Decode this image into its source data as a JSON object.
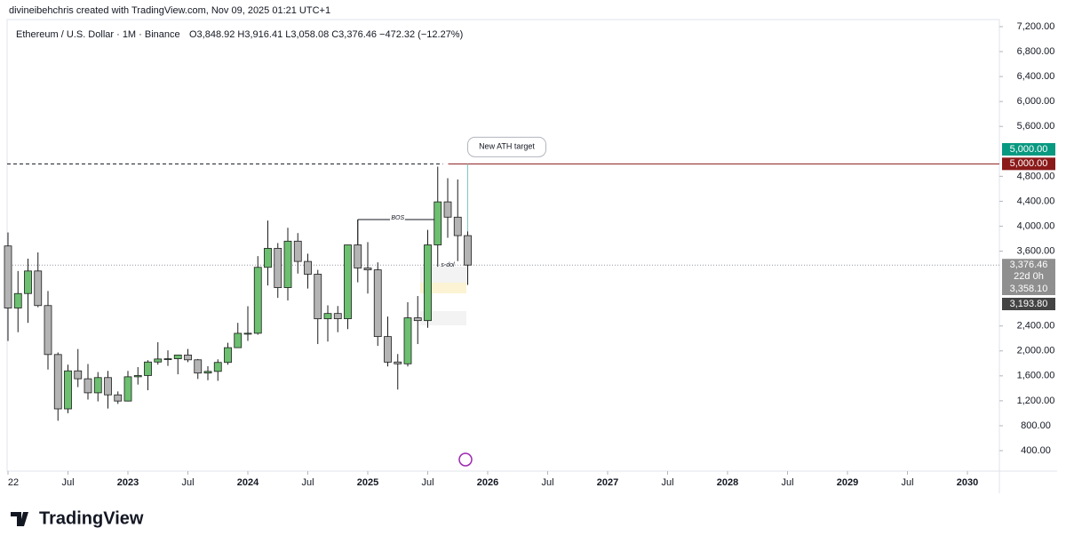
{
  "header": {
    "credit": "divineibehchris created with TradingView.com, Nov 09, 2025 01:21 UTC+1",
    "symbol": "Ethereum / U.S. Dollar · 1M · Binance",
    "ohlc_legend": "O3,848.92  H3,916.41  L3,058.08  C3,376.46  −472.32 (−12.27%)"
  },
  "footer": {
    "brand": "TradingView"
  },
  "chart_data": {
    "type": "candlestick",
    "x": [
      "2022-01",
      "2022-02",
      "2022-03",
      "2022-04",
      "2022-05",
      "2022-06",
      "2022-07",
      "2022-08",
      "2022-09",
      "2022-10",
      "2022-11",
      "2022-12",
      "2023-01",
      "2023-02",
      "2023-03",
      "2023-04",
      "2023-05",
      "2023-06",
      "2023-07",
      "2023-08",
      "2023-09",
      "2023-10",
      "2023-11",
      "2023-12",
      "2024-01",
      "2024-02",
      "2024-03",
      "2024-04",
      "2024-05",
      "2024-06",
      "2024-07",
      "2024-08",
      "2024-09",
      "2024-10",
      "2024-11",
      "2024-12",
      "2025-01",
      "2025-02",
      "2025-03",
      "2025-04",
      "2025-05",
      "2025-06",
      "2025-07",
      "2025-08",
      "2025-09",
      "2025-10",
      "2025-11"
    ],
    "open": [
      3683,
      2688,
      2920,
      3282,
      2727,
      1942,
      1070,
      1680,
      1553,
      1328,
      1572,
      1295,
      1196,
      1585,
      1605,
      1822,
      1870,
      1874,
      1934,
      1857,
      1645,
      1671,
      1815,
      2052,
      2282,
      2283,
      3340,
      3645,
      3015,
      3760,
      3435,
      3230,
      2515,
      2600,
      2516,
      3700,
      3330,
      3300,
      2230,
      1822,
      1793,
      2530,
      2486,
      3700,
      4390,
      4145,
      3848.92
    ],
    "high": [
      3900,
      3282,
      3480,
      3580,
      2960,
      1975,
      1780,
      2030,
      1790,
      1660,
      1680,
      1350,
      1680,
      1740,
      1850,
      2140,
      2010,
      1930,
      2030,
      1870,
      1755,
      1865,
      2130,
      2450,
      2717,
      3520,
      4090,
      3730,
      3975,
      3890,
      3560,
      3300,
      2730,
      2720,
      3690,
      4107,
      3745,
      3420,
      2550,
      1950,
      2780,
      2880,
      3940,
      4955,
      4770,
      4750,
      3916.41
    ],
    "low": [
      2159,
      2300,
      2450,
      2700,
      1700,
      880,
      1000,
      1420,
      1220,
      1190,
      1075,
      1150,
      1190,
      1460,
      1370,
      1780,
      1760,
      1625,
      1820,
      1550,
      1530,
      1520,
      1780,
      2050,
      2160,
      2260,
      3050,
      2850,
      2810,
      3240,
      3000,
      2110,
      2150,
      2300,
      2350,
      3100,
      2920,
      2080,
      1750,
      1380,
      1750,
      2110,
      2370,
      3350,
      3815,
      3440,
      3058.08
    ],
    "close": [
      2688,
      2920,
      3282,
      2727,
      1942,
      1070,
      1680,
      1553,
      1328,
      1572,
      1295,
      1196,
      1585,
      1605,
      1822,
      1870,
      1874,
      1934,
      1857,
      1645,
      1671,
      1815,
      2052,
      2282,
      2283,
      3340,
      3645,
      3015,
      3760,
      3435,
      3230,
      2515,
      2600,
      2516,
      3700,
      3330,
      3300,
      2230,
      1820,
      1793,
      2530,
      2486,
      3700,
      4390,
      4145,
      3848.92,
      3376.46
    ],
    "up_color": "#6cc070",
    "down_color": "#b4b4b4",
    "ylim": [
      400,
      7200
    ],
    "yticks": [
      {
        "value": 400,
        "label": "400.00"
      },
      {
        "value": 800,
        "label": "800.00"
      },
      {
        "value": 1200,
        "label": "1,200.00"
      },
      {
        "value": 1600,
        "label": "1,600.00"
      },
      {
        "value": 2000,
        "label": "2,000.00"
      },
      {
        "value": 2400,
        "label": "2,400.00"
      },
      {
        "value": 3600,
        "label": "3,600.00"
      },
      {
        "value": 4000,
        "label": "4,000.00"
      },
      {
        "value": 4400,
        "label": "4,400.00"
      },
      {
        "value": 4800,
        "label": "4,800.00"
      },
      {
        "value": 5600,
        "label": "5,600.00"
      },
      {
        "value": 6000,
        "label": "6,000.00"
      },
      {
        "value": 6400,
        "label": "6,400.00"
      },
      {
        "value": 6800,
        "label": "6,800.00"
      },
      {
        "value": 7200,
        "label": "7,200.00"
      }
    ],
    "xticks": [
      {
        "value": "2022-01",
        "label": "22"
      },
      {
        "value": "2022-07",
        "label": "Jul"
      },
      {
        "value": "2023-01",
        "label": "2023"
      },
      {
        "value": "2023-07",
        "label": "Jul"
      },
      {
        "value": "2024-01",
        "label": "2024"
      },
      {
        "value": "2024-07",
        "label": "Jul"
      },
      {
        "value": "2025-01",
        "label": "2025"
      },
      {
        "value": "2025-07",
        "label": "Jul"
      },
      {
        "value": "2026-01",
        "label": "2026"
      },
      {
        "value": "2026-07",
        "label": "Jul"
      },
      {
        "value": "2027-01",
        "label": "2027"
      },
      {
        "value": "2027-07",
        "label": "Jul"
      },
      {
        "value": "2028-01",
        "label": "2028"
      },
      {
        "value": "2028-07",
        "label": "Jul"
      },
      {
        "value": "2029-01",
        "label": "2029"
      },
      {
        "value": "2029-07",
        "label": "Jul"
      },
      {
        "value": "2030-01",
        "label": "2030"
      }
    ],
    "target": {
      "value": 5000,
      "label": "New ATH target"
    },
    "bos": {
      "value": 4107,
      "label": "BOS"
    },
    "sdol": {
      "value": 3376.46,
      "label": "s-dol"
    },
    "price_tags": [
      {
        "value": 5000,
        "label": "5,000.00",
        "color": "#089981"
      },
      {
        "value": 5000,
        "label": "5,000.00",
        "color": "#8b1a1a"
      },
      {
        "value": 3376.46,
        "label": "3,376.46",
        "color": "#8f8f8f"
      },
      {
        "label": "22d 0h",
        "color": "#8f8f8f"
      },
      {
        "value": 3358.1,
        "label": "3,358.10",
        "color": "#8f8f8f"
      },
      {
        "value": 3193.8,
        "label": "3,193.80",
        "color": "#444444"
      }
    ]
  }
}
